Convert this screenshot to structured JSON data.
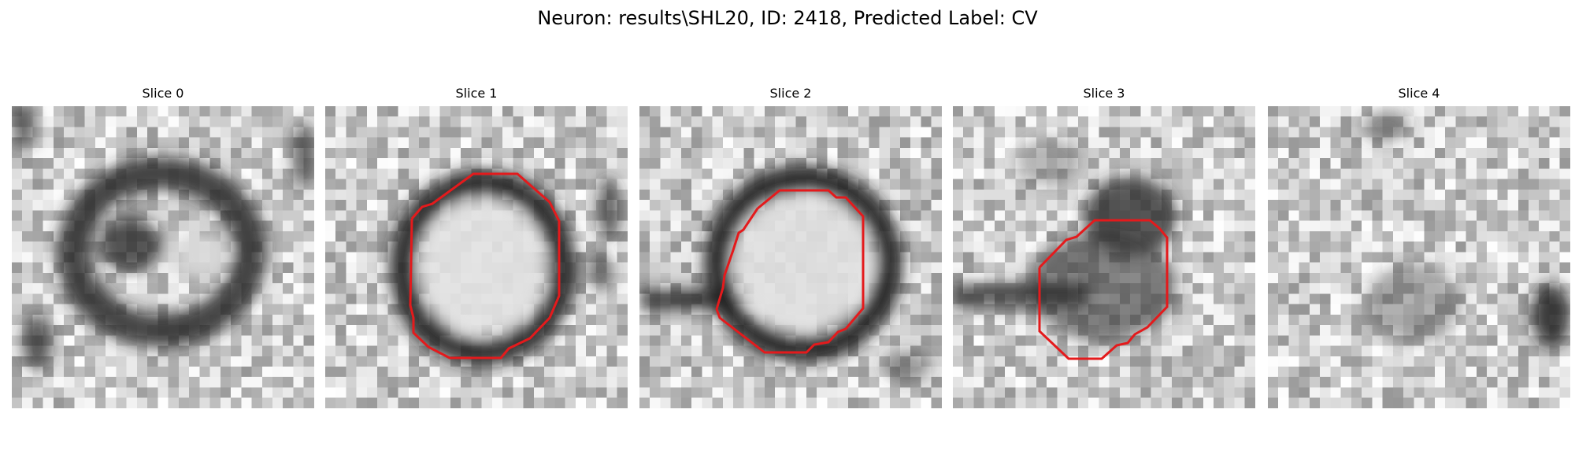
{
  "title": "Neuron: results\\SHL20, ID: 2418, Predicted Label: CV",
  "colors": {
    "contour": "#e41a1c",
    "background": "#ffffff"
  },
  "panels": [
    {
      "label": "Slice 0",
      "has_contour": false,
      "image": "grayscale EM patch, dark ring with two dark lobes"
    },
    {
      "label": "Slice 1",
      "has_contour": true,
      "image": "grayscale EM patch, round vesicle with dark rim"
    },
    {
      "label": "Slice 2",
      "has_contour": true,
      "image": "grayscale EM patch, round vesicle with dark rim, dark streak left"
    },
    {
      "label": "Slice 3",
      "has_contour": true,
      "image": "grayscale EM patch, dark cluster and horizontal dark band"
    },
    {
      "label": "Slice 4",
      "has_contour": false,
      "image": "grayscale EM patch, diffuse texture, dark blob right"
    }
  ]
}
